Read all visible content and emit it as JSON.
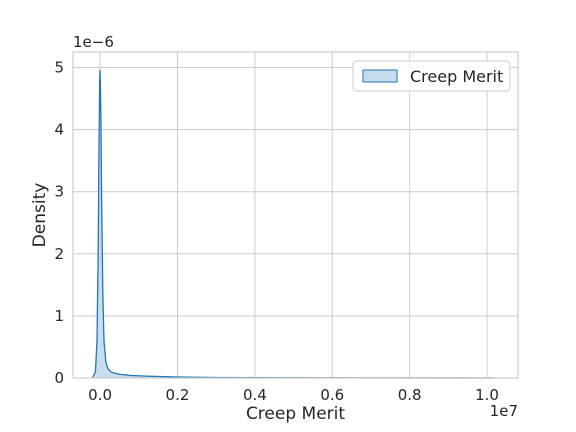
{
  "chart_data": {
    "type": "area",
    "title": "",
    "xlabel": "Creep Merit",
    "ylabel": "Density",
    "x_offset_text": "1e7",
    "y_offset_text": "1e−6",
    "xlim": [
      -0.07,
      1.08
    ],
    "ylim": [
      0,
      5.25
    ],
    "xticks": [
      0.0,
      0.2,
      0.4,
      0.6,
      0.8,
      1.0
    ],
    "xtick_labels": [
      "0.0",
      "0.2",
      "0.4",
      "0.6",
      "0.8",
      "1.0"
    ],
    "yticks": [
      0,
      1,
      2,
      3,
      4,
      5
    ],
    "ytick_labels": [
      "0",
      "1",
      "2",
      "3",
      "4",
      "5"
    ],
    "grid": true,
    "legend_position": "top-right",
    "colors": {
      "line": "#1f77b4",
      "fill": "#c6dbec",
      "grid": "#cccccc",
      "spine": "#cccccc"
    },
    "series": [
      {
        "name": "Creep Merit",
        "x": [
          -0.02,
          -0.012,
          -0.008,
          -0.005,
          -0.003,
          -0.001,
          0.0,
          0.002,
          0.004,
          0.007,
          0.01,
          0.015,
          0.02,
          0.03,
          0.05,
          0.08,
          0.12,
          0.2,
          0.3,
          0.5,
          0.7,
          0.9,
          1.02
        ],
        "y": [
          0.0,
          0.1,
          0.6,
          2.0,
          3.6,
          4.8,
          4.95,
          4.3,
          2.9,
          1.4,
          0.6,
          0.25,
          0.15,
          0.09,
          0.06,
          0.04,
          0.03,
          0.015,
          0.008,
          0.004,
          0.002,
          0.001,
          0.0
        ]
      }
    ]
  }
}
